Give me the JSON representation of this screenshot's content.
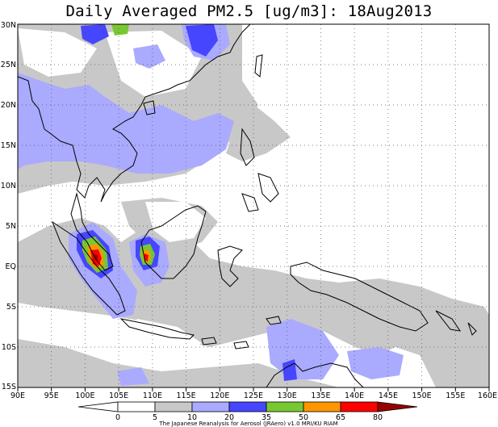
{
  "title": "Daily Averaged PM2.5 [ug/m3]: 18Aug2013",
  "credit": "The Japanese Reanalysis for Aerosol (JRAero) v1.0 MRI/KU RIAM",
  "lon_labels": [
    "90E",
    "95E",
    "100E",
    "105E",
    "110E",
    "115E",
    "120E",
    "125E",
    "130E",
    "135E",
    "140E",
    "145E",
    "150E",
    "155E",
    "160E"
  ],
  "lat_labels": [
    "30N",
    "25N",
    "20N",
    "15N",
    "10N",
    "5N",
    "EQ",
    "5S",
    "10S",
    "15S"
  ],
  "colorbar": {
    "levels": [
      "0",
      "5",
      "10",
      "20",
      "35",
      "50",
      "65",
      "80"
    ],
    "colors": [
      "#ffffff",
      "#ffffff",
      "#c8c8c8",
      "#aaaaff",
      "#4646ff",
      "#78c832",
      "#ff9600",
      "#ff0000",
      "#960000"
    ]
  },
  "map_extent": {
    "lon": [
      90,
      160
    ],
    "lat": [
      -15,
      30
    ]
  }
}
